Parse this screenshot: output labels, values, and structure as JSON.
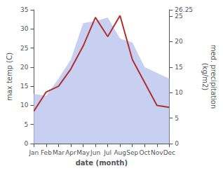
{
  "chart_data": {
    "type": "line",
    "categories": [
      "Jan",
      "Feb",
      "Mar",
      "Apr",
      "May",
      "Jun",
      "Jul",
      "Aug",
      "Sep",
      "Oct",
      "Nov",
      "Dec"
    ],
    "xlabel": "date (month)",
    "ylabel": "max temp (C)",
    "y2label": "med. precipitation\n(kg/m2)",
    "series": [
      {
        "type": "area",
        "color": "#c8d0f2",
        "values": [
          13.0,
          12.5,
          17.0,
          22.0,
          31.5,
          32.0,
          33.0,
          27.5,
          26.5,
          20.0,
          18.5,
          17.0
        ]
      },
      {
        "type": "line",
        "color": "#b03030",
        "values": [
          8.5,
          13.5,
          15.0,
          19.5,
          25.5,
          33.0,
          28.0,
          33.5,
          22.0,
          16.0,
          10.0,
          9.5
        ]
      }
    ],
    "ylim": [
      0,
      35
    ],
    "yticks": [
      0,
      5,
      10,
      15,
      20,
      25,
      30,
      35
    ],
    "y2lim": [
      0,
      26.25
    ],
    "y2ticks": [
      0,
      5,
      10,
      15,
      20,
      25
    ],
    "grid": false
  }
}
